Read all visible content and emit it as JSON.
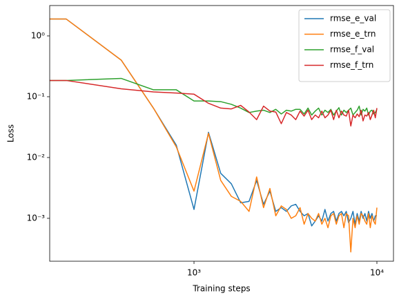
{
  "chart_data": {
    "type": "line",
    "xlabel": "Training steps",
    "ylabel": "Loss",
    "xscale": "log",
    "yscale": "log",
    "legend": "upper right",
    "xlim": [
      162.6,
      12320
    ],
    "ylim": [
      0.000197,
      3.16
    ],
    "xticks": [
      {
        "value": 1000,
        "label": "10³"
      },
      {
        "value": 10000,
        "label": "10⁴"
      }
    ],
    "yticks": [
      {
        "value": 0.001,
        "label": "10⁻³"
      },
      {
        "value": 0.01,
        "label": "10⁻²"
      },
      {
        "value": 0.1,
        "label": "10⁻¹"
      },
      {
        "value": 1,
        "label": "10⁰"
      }
    ],
    "x": [
      100,
      200,
      400,
      600,
      800,
      1000,
      1200,
      1400,
      1600,
      1800,
      2000,
      2200,
      2400,
      2600,
      2800,
      3000,
      3200,
      3400,
      3600,
      3800,
      4000,
      4200,
      4400,
      4600,
      4800,
      5000,
      5200,
      5400,
      5600,
      5800,
      6000,
      6200,
      6400,
      6600,
      6800,
      7000,
      7200,
      7400,
      7600,
      7800,
      8000,
      8200,
      8400,
      8600,
      8800,
      9000,
      9200,
      9400,
      9600,
      9800,
      10000
    ],
    "series": [
      {
        "name": "rmse_e_val",
        "color": "#1f77b4",
        "values": [
          1.9,
          1.9,
          0.4,
          0.065,
          0.016,
          0.0014,
          0.026,
          0.0055,
          0.0037,
          0.0018,
          0.0019,
          0.0042,
          0.0017,
          0.0028,
          0.0013,
          0.0015,
          0.0013,
          0.0016,
          0.0017,
          0.0013,
          0.0011,
          0.0012,
          0.00075,
          0.0009,
          0.0011,
          0.0009,
          0.0014,
          0.0009,
          0.0012,
          0.0013,
          0.0009,
          0.0012,
          0.0013,
          0.0011,
          0.0013,
          0.00085,
          0.001,
          0.0013,
          0.0008,
          0.0012,
          0.0009,
          0.0013,
          0.001,
          0.0012,
          0.0009,
          0.0013,
          0.001,
          0.0012,
          0.0009,
          0.0011,
          0.0011
        ]
      },
      {
        "name": "rmse_e_trn",
        "color": "#ff7f0e",
        "values": [
          1.9,
          1.9,
          0.4,
          0.065,
          0.015,
          0.0028,
          0.025,
          0.0042,
          0.0023,
          0.0019,
          0.0013,
          0.0048,
          0.0015,
          0.0031,
          0.0011,
          0.0016,
          0.0014,
          0.001,
          0.0011,
          0.0015,
          0.0008,
          0.0012,
          0.001,
          0.0009,
          0.0012,
          0.0008,
          0.001,
          0.0007,
          0.0011,
          0.0012,
          0.0008,
          0.0011,
          0.0012,
          0.0007,
          0.0012,
          0.0011,
          0.00028,
          0.001,
          0.0007,
          0.0011,
          0.0008,
          0.0012,
          0.0011,
          0.0009,
          0.0008,
          0.0012,
          0.0007,
          0.0011,
          0.0009,
          0.0008,
          0.0015
        ]
      },
      {
        "name": "rmse_f_val",
        "color": "#2ca02c",
        "values": [
          0.185,
          0.185,
          0.2,
          0.13,
          0.13,
          0.085,
          0.085,
          0.083,
          0.075,
          0.065,
          0.055,
          0.058,
          0.06,
          0.055,
          0.062,
          0.052,
          0.06,
          0.058,
          0.062,
          0.062,
          0.052,
          0.065,
          0.05,
          0.058,
          0.065,
          0.05,
          0.06,
          0.055,
          0.062,
          0.05,
          0.058,
          0.066,
          0.05,
          0.06,
          0.055,
          0.06,
          0.065,
          0.05,
          0.055,
          0.06,
          0.07,
          0.05,
          0.062,
          0.058,
          0.065,
          0.05,
          0.058,
          0.06,
          0.052,
          0.055,
          0.062
        ]
      },
      {
        "name": "rmse_f_trn",
        "color": "#d62728",
        "values": [
          0.185,
          0.185,
          0.135,
          0.12,
          0.115,
          0.11,
          0.078,
          0.065,
          0.063,
          0.072,
          0.056,
          0.042,
          0.07,
          0.058,
          0.056,
          0.036,
          0.055,
          0.05,
          0.042,
          0.058,
          0.048,
          0.06,
          0.042,
          0.05,
          0.045,
          0.058,
          0.045,
          0.05,
          0.06,
          0.042,
          0.06,
          0.045,
          0.058,
          0.05,
          0.048,
          0.06,
          0.033,
          0.05,
          0.045,
          0.052,
          0.047,
          0.06,
          0.04,
          0.05,
          0.048,
          0.055,
          0.042,
          0.05,
          0.06,
          0.045,
          0.065
        ]
      }
    ]
  }
}
